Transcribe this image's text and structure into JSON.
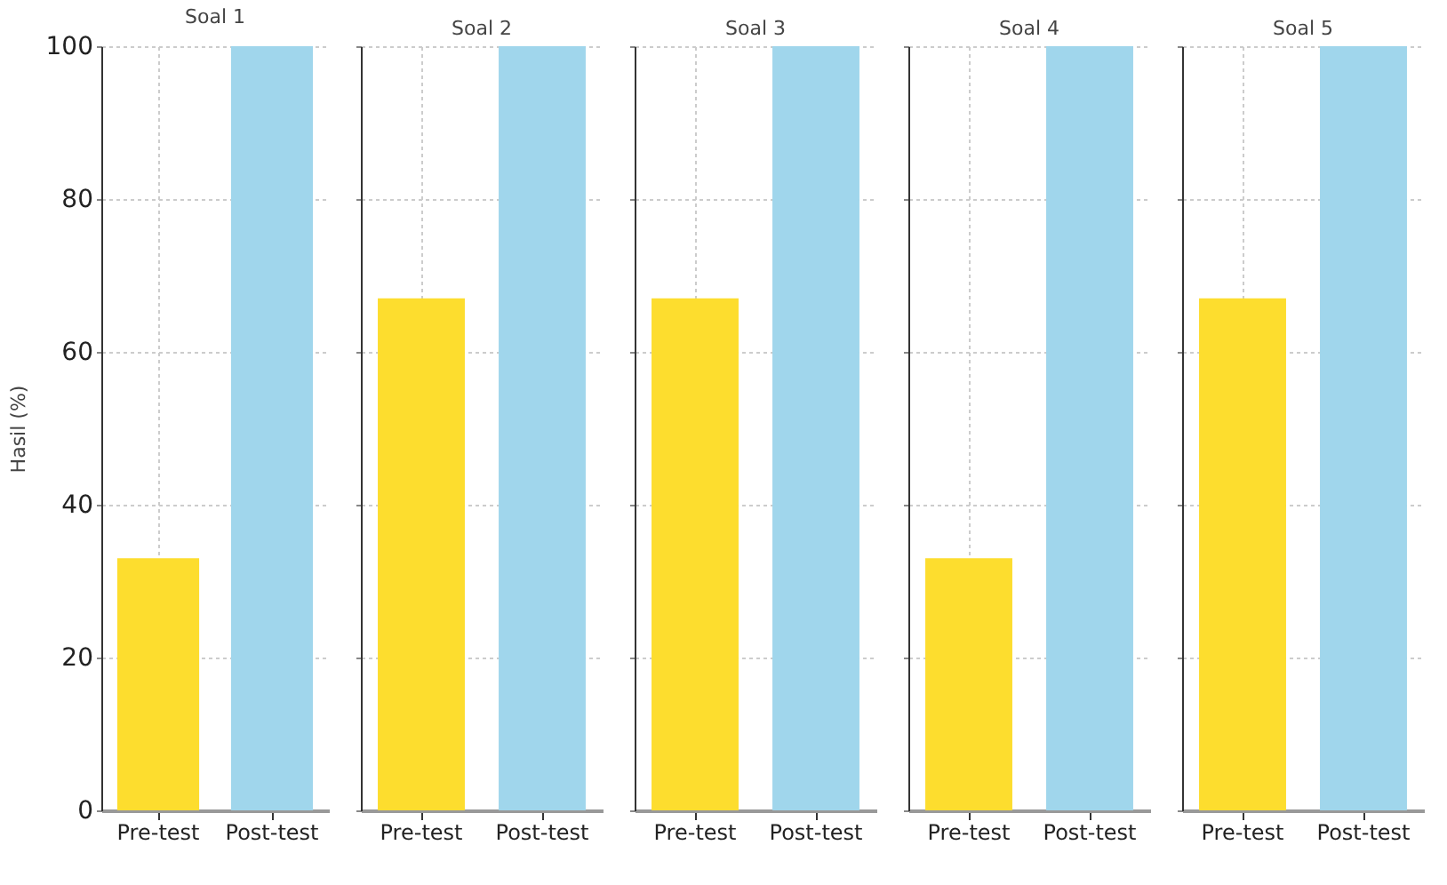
{
  "chart_data": [
    {
      "type": "bar",
      "title": "Soal 1",
      "ylabel": "Hasil (%)",
      "categories": [
        "Pre-test",
        "Post-test"
      ],
      "values": [
        33,
        100
      ],
      "colors": [
        "#fddd2e",
        "#a0d6ec"
      ],
      "ylim": [
        0,
        100
      ],
      "yticks": [
        0,
        20,
        40,
        60,
        80,
        100
      ],
      "grid": true
    },
    {
      "type": "bar",
      "title": "Soal 2",
      "categories": [
        "Pre-test",
        "Post-test"
      ],
      "values": [
        67,
        100
      ],
      "colors": [
        "#fddd2e",
        "#a0d6ec"
      ],
      "ylim": [
        0,
        100
      ],
      "yticks": [
        0,
        20,
        40,
        60,
        80,
        100
      ],
      "grid": true,
      "tick_labels": "x"
    },
    {
      "type": "bar",
      "title": "Soal 3",
      "categories": [
        "Pre-test",
        "Post-test"
      ],
      "values": [
        67,
        100
      ],
      "colors": [
        "#fddd2e",
        "#a0d6ec"
      ],
      "ylim": [
        0,
        100
      ],
      "yticks": [
        0,
        20,
        40,
        60,
        80,
        100
      ],
      "grid": true,
      "tick_labels": "x"
    },
    {
      "type": "bar",
      "title": "Soal 4",
      "categories": [
        "Pre-test",
        "Post-test"
      ],
      "values": [
        33,
        100
      ],
      "colors": [
        "#fddd2e",
        "#a0d6ec"
      ],
      "ylim": [
        0,
        100
      ],
      "yticks": [
        0,
        20,
        40,
        60,
        80,
        100
      ],
      "grid": true,
      "tick_labels": "x"
    },
    {
      "type": "bar",
      "title": "Soal 5",
      "categories": [
        "Pre-test",
        "Post-test"
      ],
      "values": [
        67,
        100
      ],
      "colors": [
        "#fddd2e",
        "#a0d6ec"
      ],
      "ylim": [
        0,
        100
      ],
      "yticks": [
        0,
        20,
        40,
        60,
        80,
        100
      ],
      "grid": true,
      "tick_labels": "x"
    }
  ]
}
